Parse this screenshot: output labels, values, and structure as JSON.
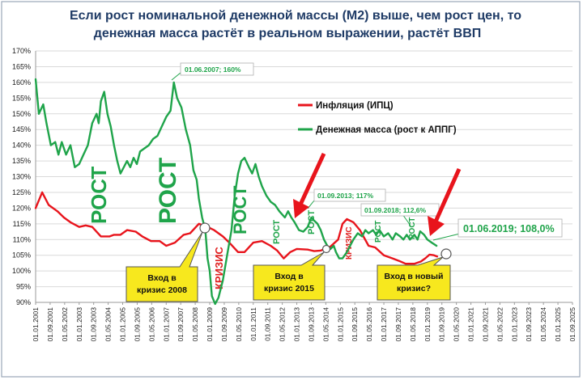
{
  "title_line1": "Если рост номинальной денежной массы (М2) выше, чем рост цен,  то",
  "title_line2": "денежная масса растёт в реальном выражении, растёт ВВП",
  "legend": {
    "inflation": "Инфляция (ИПЦ)",
    "money": "Денежная масса (рост к АППГ)"
  },
  "colors": {
    "inflation": "#e8141c",
    "money": "#1fa44a",
    "crisis": "#e02020",
    "callout_fill": "#f7e81e",
    "arrow": "#e8141c"
  },
  "big_words": [
    "РОСТ",
    "РОСТ",
    "РОСТ",
    "РОСТ",
    "РОСТ",
    "РОСТ",
    "РОСТ"
  ],
  "crisis_words": [
    "КРИЗИС",
    "КРИЗИС"
  ],
  "callouts": [
    {
      "lines": [
        "Вход в",
        "кризис 2008"
      ]
    },
    {
      "lines": [
        "Вход в",
        "кризис 2015"
      ]
    },
    {
      "lines": [
        "Вход в новый",
        "кризис?"
      ]
    }
  ],
  "annotations": [
    {
      "text": "01.06.2007;  160%"
    },
    {
      "text": "01.09.2013;  117%"
    },
    {
      "text": "01.09.2018;  112,6%"
    },
    {
      "text": "01.06.2019; 108,0%"
    }
  ],
  "chart_data": {
    "type": "line",
    "title": "Если рост номинальной денежной массы (М2) выше, чем рост цен,  то денежная масса растёт в реальном выражении, растёт ВВП",
    "ylim": [
      90,
      170
    ],
    "yticks": [
      "90%",
      "95%",
      "100%",
      "105%",
      "110%",
      "115%",
      "120%",
      "125%",
      "130%",
      "135%",
      "140%",
      "145%",
      "150%",
      "155%",
      "160%",
      "165%",
      "170%"
    ],
    "xlim": [
      2001.0,
      2025.667
    ],
    "xticks": [
      "01.01.2001",
      "01.09.2001",
      "01.05.2002",
      "01.01.2003",
      "01.09.2003",
      "01.05.2004",
      "01.01.2005",
      "01.09.2005",
      "01.05.2006",
      "01.01.2007",
      "01.09.2007",
      "01.05.2008",
      "01.01.2009",
      "01.09.2009",
      "01.05.2010",
      "01.01.2011",
      "01.09.2011",
      "01.05.2012",
      "01.01.2013",
      "01.09.2013",
      "01.05.2014",
      "01.01.2015",
      "01.09.2015",
      "01.05.2016",
      "01.01.2017",
      "01.09.2017",
      "01.05.2018",
      "01.01.2019",
      "01.09.2019",
      "01.05.2020",
      "01.01.2021",
      "01.09.2021",
      "01.05.2022",
      "01.01.2023",
      "01.09.2023",
      "01.05.2024",
      "01.01.2025",
      "01.09.2025"
    ],
    "series": [
      {
        "name": "Инфляция (ИПЦ)",
        "points": [
          [
            2001.0,
            120
          ],
          [
            2001.3,
            125
          ],
          [
            2001.6,
            121
          ],
          [
            2002.0,
            119
          ],
          [
            2002.3,
            117
          ],
          [
            2002.6,
            115.5
          ],
          [
            2003.0,
            114
          ],
          [
            2003.3,
            114.5
          ],
          [
            2003.6,
            114
          ],
          [
            2004.0,
            111
          ],
          [
            2004.4,
            111
          ],
          [
            2004.6,
            111.5
          ],
          [
            2004.9,
            111.5
          ],
          [
            2005.2,
            113
          ],
          [
            2005.6,
            112.5
          ],
          [
            2005.9,
            111
          ],
          [
            2006.3,
            109.5
          ],
          [
            2006.7,
            109.5
          ],
          [
            2007.0,
            108
          ],
          [
            2007.4,
            109
          ],
          [
            2007.8,
            111.5
          ],
          [
            2008.1,
            112
          ],
          [
            2008.5,
            115
          ],
          [
            2008.9,
            114
          ],
          [
            2009.2,
            113
          ],
          [
            2009.6,
            111
          ],
          [
            2009.9,
            109
          ],
          [
            2010.3,
            106
          ],
          [
            2010.6,
            106
          ],
          [
            2011.0,
            109
          ],
          [
            2011.4,
            109.5
          ],
          [
            2011.8,
            108
          ],
          [
            2012.1,
            106.5
          ],
          [
            2012.4,
            104
          ],
          [
            2012.7,
            106
          ],
          [
            2013.0,
            107
          ],
          [
            2013.5,
            106.8
          ],
          [
            2013.8,
            106.3
          ],
          [
            2014.1,
            106.5
          ],
          [
            2014.5,
            107.5
          ],
          [
            2014.9,
            110
          ],
          [
            2015.1,
            115
          ],
          [
            2015.3,
            116.5
          ],
          [
            2015.6,
            115.5
          ],
          [
            2015.9,
            113
          ],
          [
            2016.3,
            108
          ],
          [
            2016.6,
            107.5
          ],
          [
            2017.0,
            105
          ],
          [
            2017.4,
            104
          ],
          [
            2017.7,
            103.2
          ],
          [
            2018.0,
            102.3
          ],
          [
            2018.4,
            102.3
          ],
          [
            2018.7,
            103
          ],
          [
            2018.9,
            104
          ],
          [
            2019.1,
            105.2
          ],
          [
            2019.3,
            105
          ],
          [
            2019.45,
            104.6
          ]
        ]
      },
      {
        "name": "Денежная масса (рост к АППГ)",
        "points": [
          [
            2001.0,
            161
          ],
          [
            2001.15,
            150
          ],
          [
            2001.35,
            153
          ],
          [
            2001.5,
            147
          ],
          [
            2001.7,
            140
          ],
          [
            2001.9,
            141
          ],
          [
            2002.05,
            137
          ],
          [
            2002.2,
            141
          ],
          [
            2002.4,
            137
          ],
          [
            2002.6,
            140
          ],
          [
            2002.8,
            133
          ],
          [
            2003.0,
            134
          ],
          [
            2003.2,
            137
          ],
          [
            2003.4,
            140
          ],
          [
            2003.6,
            147
          ],
          [
            2003.8,
            150
          ],
          [
            2003.9,
            147
          ],
          [
            2004.0,
            154
          ],
          [
            2004.15,
            157
          ],
          [
            2004.3,
            150
          ],
          [
            2004.45,
            146
          ],
          [
            2004.6,
            140
          ],
          [
            2004.75,
            135
          ],
          [
            2004.9,
            131
          ],
          [
            2005.05,
            133
          ],
          [
            2005.2,
            135
          ],
          [
            2005.35,
            133
          ],
          [
            2005.5,
            136
          ],
          [
            2005.65,
            134
          ],
          [
            2005.8,
            138
          ],
          [
            2006.0,
            139
          ],
          [
            2006.2,
            140
          ],
          [
            2006.4,
            142
          ],
          [
            2006.6,
            143
          ],
          [
            2006.8,
            146
          ],
          [
            2007.0,
            149
          ],
          [
            2007.2,
            151
          ],
          [
            2007.35,
            160
          ],
          [
            2007.5,
            155
          ],
          [
            2007.7,
            152
          ],
          [
            2007.9,
            145
          ],
          [
            2008.1,
            140
          ],
          [
            2008.25,
            132
          ],
          [
            2008.4,
            129
          ],
          [
            2008.5,
            123
          ],
          [
            2008.65,
            117
          ],
          [
            2008.8,
            113
          ],
          [
            2008.9,
            104
          ],
          [
            2009.0,
            100
          ],
          [
            2009.1,
            92
          ],
          [
            2009.25,
            89.5
          ],
          [
            2009.4,
            91.5
          ],
          [
            2009.6,
            97
          ],
          [
            2009.8,
            105
          ],
          [
            2010.0,
            113
          ],
          [
            2010.15,
            124
          ],
          [
            2010.3,
            131
          ],
          [
            2010.45,
            135
          ],
          [
            2010.6,
            136
          ],
          [
            2010.8,
            133
          ],
          [
            2010.95,
            131
          ],
          [
            2011.1,
            134
          ],
          [
            2011.25,
            130
          ],
          [
            2011.4,
            127
          ],
          [
            2011.6,
            124
          ],
          [
            2011.8,
            122
          ],
          [
            2012.0,
            121
          ],
          [
            2012.2,
            119
          ],
          [
            2012.45,
            117
          ],
          [
            2012.6,
            119
          ],
          [
            2012.75,
            117
          ],
          [
            2012.9,
            115.5
          ],
          [
            2013.1,
            113
          ],
          [
            2013.3,
            112.5
          ],
          [
            2013.5,
            114
          ],
          [
            2013.67,
            117
          ],
          [
            2013.8,
            116
          ],
          [
            2013.95,
            115
          ],
          [
            2014.1,
            113
          ],
          [
            2014.25,
            110
          ],
          [
            2014.4,
            108
          ],
          [
            2014.55,
            107
          ],
          [
            2014.7,
            108
          ],
          [
            2014.8,
            106
          ],
          [
            2014.95,
            104
          ],
          [
            2015.1,
            104
          ],
          [
            2015.3,
            106
          ],
          [
            2015.45,
            108
          ],
          [
            2015.6,
            110
          ],
          [
            2015.8,
            112
          ],
          [
            2016.0,
            111
          ],
          [
            2016.15,
            113
          ],
          [
            2016.3,
            112
          ],
          [
            2016.5,
            113
          ],
          [
            2016.65,
            111.5
          ],
          [
            2016.8,
            113
          ],
          [
            2017.0,
            111
          ],
          [
            2017.2,
            112
          ],
          [
            2017.4,
            110
          ],
          [
            2017.55,
            112
          ],
          [
            2017.75,
            111
          ],
          [
            2017.9,
            110
          ],
          [
            2018.05,
            111.5
          ],
          [
            2018.2,
            110
          ],
          [
            2018.4,
            111.5
          ],
          [
            2018.55,
            110
          ],
          [
            2018.67,
            112.6
          ],
          [
            2018.85,
            111.5
          ],
          [
            2019.0,
            110
          ],
          [
            2019.2,
            109
          ],
          [
            2019.42,
            108
          ]
        ]
      }
    ]
  }
}
